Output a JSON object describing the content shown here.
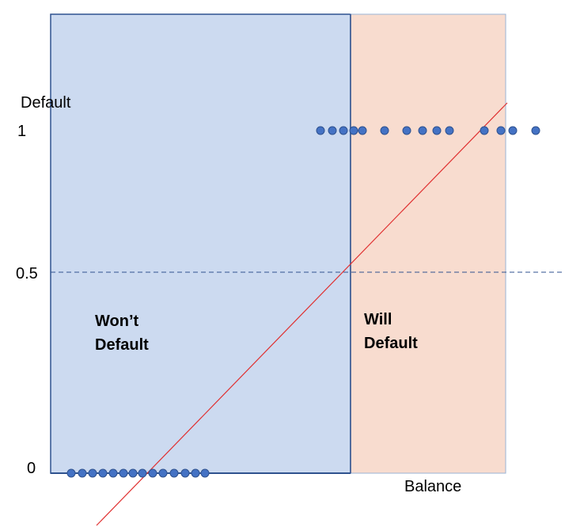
{
  "chart_data": {
    "type": "scatter",
    "xlabel": "Balance",
    "ylabel": "Default",
    "y_tick_labels": [
      "0",
      "0.5",
      "1"
    ],
    "y_ticks": [
      0,
      0.5,
      1
    ],
    "threshold": 0.5,
    "regions": [
      {
        "label_lines": [
          "Won’t",
          "Default"
        ],
        "color": "#CCDAF0"
      },
      {
        "label_lines": [
          "Will",
          "Default"
        ],
        "color": "#F8DCCF"
      }
    ],
    "series": [
      {
        "values": [
          0,
          0,
          0,
          0,
          0,
          0,
          0,
          0,
          0,
          0,
          0,
          0,
          0,
          0
        ]
      },
      {
        "values": [
          1,
          1,
          1,
          1,
          1,
          1,
          1,
          1,
          1,
          1,
          1,
          1,
          1,
          1
        ]
      }
    ],
    "colors": {
      "points": "#4472C4",
      "point_outline": "#2F528F",
      "fit_line": "#E03030",
      "threshold_line": "#2F528F",
      "region_border": "#2F528F"
    }
  }
}
